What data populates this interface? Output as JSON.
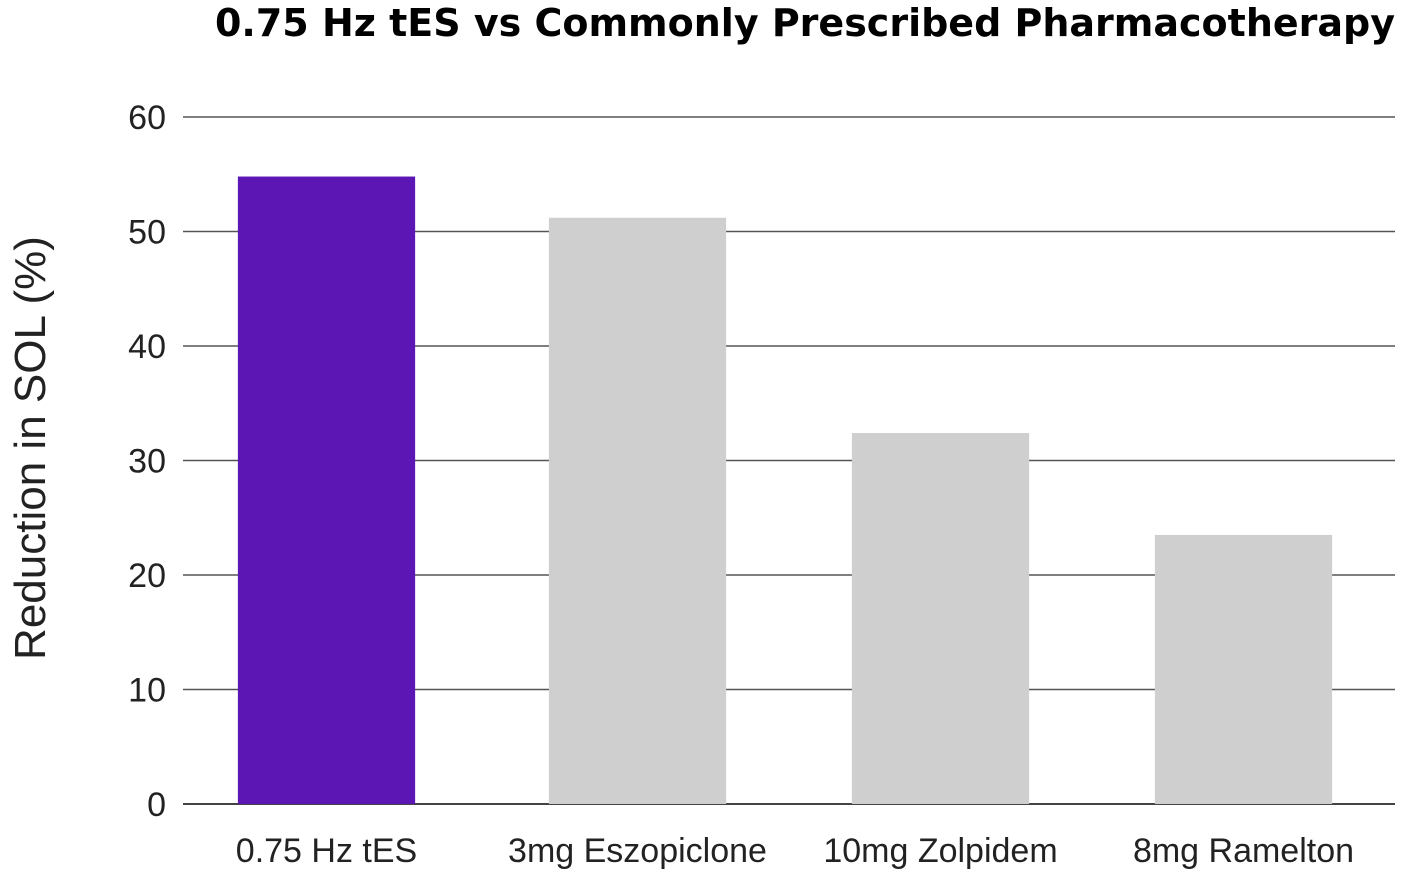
{
  "chart_data": {
    "type": "bar",
    "title": "0.75 Hz tES vs Commonly Prescribed Pharmacotherapy",
    "xlabel": "",
    "ylabel": "Reduction in SOL (%)",
    "categories": [
      "0.75 Hz tES",
      "3mg Eszopiclone",
      "10mg Zolpidem",
      "8mg Ramelton"
    ],
    "values": [
      54.8,
      51.2,
      32.4,
      23.5
    ],
    "colors": [
      "#5b16b4",
      "#d0cfd0",
      "#d0cfd0",
      "#d0cfd0"
    ],
    "ylim": [
      0,
      60
    ],
    "yticks": [
      0,
      10,
      20,
      30,
      40,
      50,
      60
    ],
    "grid": true,
    "legend": "none"
  }
}
